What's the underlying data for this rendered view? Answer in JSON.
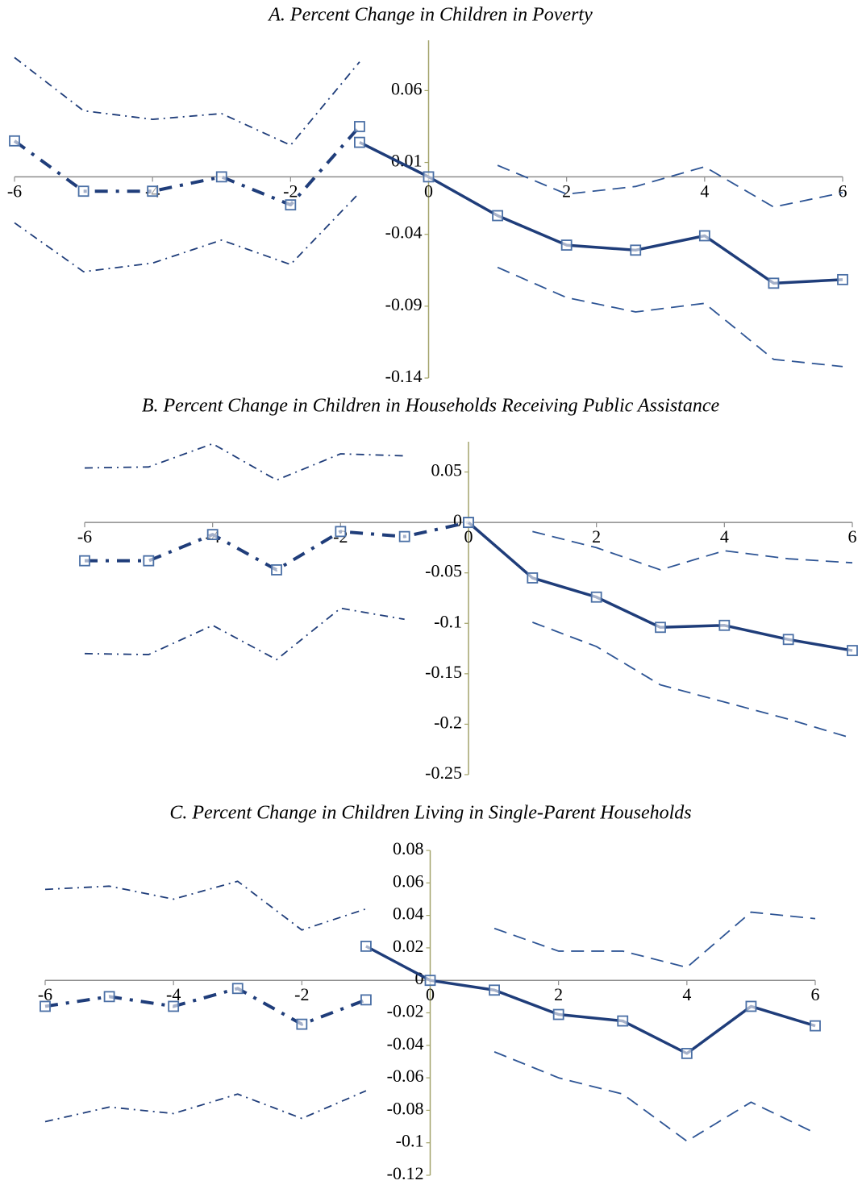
{
  "chart_data": [
    {
      "type": "line",
      "title": "A.  Percent Change in Children in Poverty",
      "xlim": [
        -6,
        6
      ],
      "xticks": [
        -6,
        -4,
        -2,
        0,
        2,
        4,
        6
      ],
      "ylim": [
        -0.14,
        0.095
      ],
      "yticks": [
        -0.14,
        -0.09,
        -0.04,
        0.01,
        0.06
      ],
      "series": [
        {
          "x": [
            -6,
            -5,
            -4,
            -3,
            -2,
            -1
          ],
          "values": [
            0.025,
            -0.01,
            -0.01,
            0,
            -0.0195,
            0.035
          ],
          "color": "#1f3d7a",
          "style": "dashdot",
          "width": 4,
          "markers": true
        },
        {
          "x": [
            -1,
            0,
            1,
            2,
            3,
            4,
            5,
            6
          ],
          "values": [
            0.024,
            0,
            -0.027,
            -0.0475,
            -0.051,
            -0.041,
            -0.074,
            -0.0715
          ],
          "color": "#1f3d7a",
          "style": "solid",
          "width": 3.5,
          "markers": true
        },
        {
          "x": [
            -6,
            -5,
            -4,
            -3,
            -2,
            -1
          ],
          "values": [
            0.083,
            0.046,
            0.04,
            0.044,
            0.022,
            0.08
          ],
          "color": "#1f3d7a",
          "style": "dashdot",
          "width": 1.8,
          "markers": false
        },
        {
          "x": [
            -6,
            -5,
            -4,
            -3,
            -2,
            -1
          ],
          "values": [
            -0.032,
            -0.066,
            -0.06,
            -0.044,
            -0.061,
            -0.011
          ],
          "color": "#1f3d7a",
          "style": "dashdot",
          "width": 1.8,
          "markers": false
        },
        {
          "x": [
            1,
            2,
            3,
            4,
            5,
            6
          ],
          "values": [
            0.008,
            -0.012,
            -0.0067,
            0.007,
            -0.021,
            -0.011
          ],
          "color": "#2e5595",
          "style": "dashed",
          "width": 1.8,
          "markers": false
        },
        {
          "x": [
            1,
            2,
            3,
            4,
            5,
            6
          ],
          "values": [
            -0.063,
            -0.084,
            -0.094,
            -0.088,
            -0.127,
            -0.132
          ],
          "color": "#2e5595",
          "style": "dashed",
          "width": 1.8,
          "markers": false
        }
      ]
    },
    {
      "type": "line",
      "title": "B.   Percent Change in Children in Households Receiving Public Assistance",
      "xlim": [
        -6,
        6
      ],
      "xticks": [
        -6,
        -4,
        -2,
        0,
        2,
        4,
        6
      ],
      "ylim": [
        -0.25,
        0.08
      ],
      "yticks": [
        -0.25,
        -0.2,
        -0.15,
        -0.1,
        -0.05,
        0,
        0.05
      ],
      "series": [
        {
          "x": [
            -6,
            -5,
            -4,
            -3,
            -2,
            -1,
            0
          ],
          "values": [
            -0.038,
            -0.038,
            -0.012,
            -0.047,
            -0.009,
            -0.014,
            0
          ],
          "color": "#1f3d7a",
          "style": "dashdot",
          "width": 4,
          "markers": true
        },
        {
          "x": [
            0,
            1,
            2,
            3,
            4,
            5,
            6
          ],
          "values": [
            0,
            -0.055,
            -0.074,
            -0.104,
            -0.102,
            -0.116,
            -0.127
          ],
          "color": "#1f3d7a",
          "style": "solid",
          "width": 3.5,
          "markers": true
        },
        {
          "x": [
            -6,
            -5,
            -4,
            -3,
            -2,
            -1
          ],
          "values": [
            0.054,
            0.055,
            0.078,
            0.042,
            0.068,
            0.066
          ],
          "color": "#1f3d7a",
          "style": "dashdot",
          "width": 1.8,
          "markers": false
        },
        {
          "x": [
            -6,
            -5,
            -4,
            -3,
            -2,
            -1
          ],
          "values": [
            -0.13,
            -0.131,
            -0.102,
            -0.136,
            -0.085,
            -0.096
          ],
          "color": "#1f3d7a",
          "style": "dashdot",
          "width": 1.8,
          "markers": false
        },
        {
          "x": [
            1,
            2,
            3,
            4,
            5,
            6
          ],
          "values": [
            -0.009,
            -0.025,
            -0.047,
            -0.028,
            -0.036,
            -0.04
          ],
          "color": "#2e5595",
          "style": "dashed",
          "width": 1.8,
          "markers": false
        },
        {
          "x": [
            1,
            2,
            3,
            4,
            5,
            6
          ],
          "values": [
            -0.099,
            -0.123,
            -0.161,
            -0.178,
            -0.195,
            -0.214
          ],
          "color": "#2e5595",
          "style": "dashed",
          "width": 1.8,
          "markers": false
        }
      ]
    },
    {
      "type": "line",
      "title": "C.   Percent Change in Children Living in Single-Parent Households",
      "xlim": [
        -6,
        6
      ],
      "xticks": [
        -6,
        -4,
        -2,
        0,
        2,
        4,
        6
      ],
      "ylim": [
        -0.12,
        0.08
      ],
      "yticks": [
        -0.12,
        -0.1,
        -0.08,
        -0.06,
        -0.04,
        -0.02,
        0,
        0.02,
        0.04,
        0.06,
        0.08
      ],
      "series": [
        {
          "x": [
            -6,
            -5,
            -4,
            -3,
            -2,
            -1
          ],
          "values": [
            -0.016,
            -0.01,
            -0.016,
            -0.005,
            -0.027,
            -0.012
          ],
          "color": "#1f3d7a",
          "style": "dashdot",
          "width": 4,
          "markers": true
        },
        {
          "x": [
            -1,
            0,
            1,
            2,
            3,
            4,
            5,
            6
          ],
          "values": [
            0.021,
            0,
            -0.006,
            -0.021,
            -0.025,
            -0.045,
            -0.016,
            -0.028
          ],
          "color": "#1f3d7a",
          "style": "solid",
          "width": 3.5,
          "markers": true
        },
        {
          "x": [
            -6,
            -5,
            -4,
            -3,
            -2,
            -1
          ],
          "values": [
            0.056,
            0.058,
            0.05,
            0.061,
            0.031,
            0.044
          ],
          "color": "#1f3d7a",
          "style": "dashdot",
          "width": 1.8,
          "markers": false
        },
        {
          "x": [
            -6,
            -5,
            -4,
            -3,
            -2,
            -1
          ],
          "values": [
            -0.087,
            -0.078,
            -0.082,
            -0.07,
            -0.085,
            -0.068
          ],
          "color": "#1f3d7a",
          "style": "dashdot",
          "width": 1.8,
          "markers": false
        },
        {
          "x": [
            1,
            2,
            3,
            4,
            5,
            6
          ],
          "values": [
            0.032,
            0.018,
            0.018,
            0.008,
            0.042,
            0.038
          ],
          "color": "#2e5595",
          "style": "dashed",
          "width": 1.8,
          "markers": false
        },
        {
          "x": [
            1,
            2,
            3,
            4,
            5,
            6
          ],
          "values": [
            -0.044,
            -0.06,
            -0.07,
            -0.099,
            -0.075,
            -0.094
          ],
          "color": "#2e5595",
          "style": "dashed",
          "width": 1.8,
          "markers": false
        }
      ]
    }
  ]
}
